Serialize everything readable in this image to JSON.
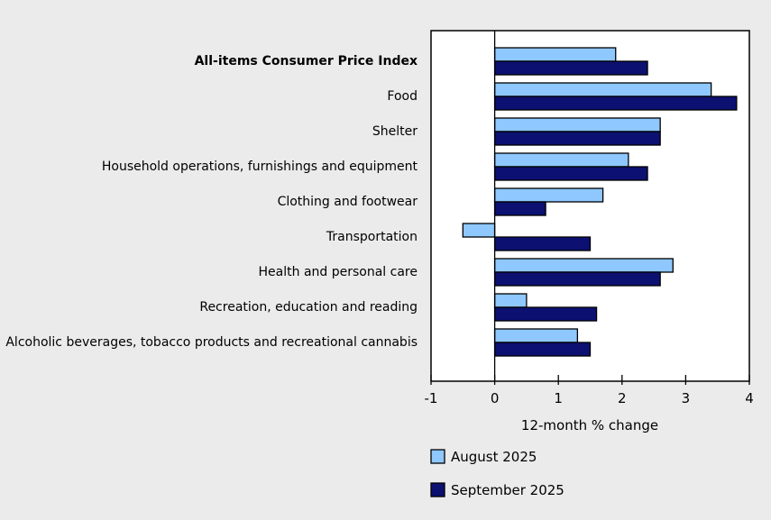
{
  "chart_data": {
    "type": "bar",
    "orientation": "horizontal",
    "categories": [
      "All-items Consumer Price Index",
      "Food",
      "Shelter",
      "Household operations, furnishings and equipment",
      "Clothing and footwear",
      "Transportation",
      "Health and personal care",
      "Recreation, education and reading",
      "Alcoholic beverages, tobacco products and recreational cannabis"
    ],
    "bold_categories": [
      "All-items Consumer Price Index"
    ],
    "series": [
      {
        "name": "August 2025",
        "color": "#8ec8ff",
        "values": [
          1.9,
          3.4,
          2.6,
          2.1,
          1.7,
          -0.5,
          2.8,
          0.5,
          1.3
        ]
      },
      {
        "name": "September 2025",
        "color": "#0c1070",
        "values": [
          2.4,
          3.8,
          2.6,
          2.4,
          0.8,
          1.5,
          2.6,
          1.6,
          1.5
        ]
      }
    ],
    "xlabel": "12-month % change",
    "ylabel": "",
    "title": "",
    "xlim": [
      -1,
      4
    ],
    "xticks": [
      -1,
      0,
      1,
      2,
      3,
      4
    ],
    "grid": false,
    "legend_position": "bottom"
  }
}
